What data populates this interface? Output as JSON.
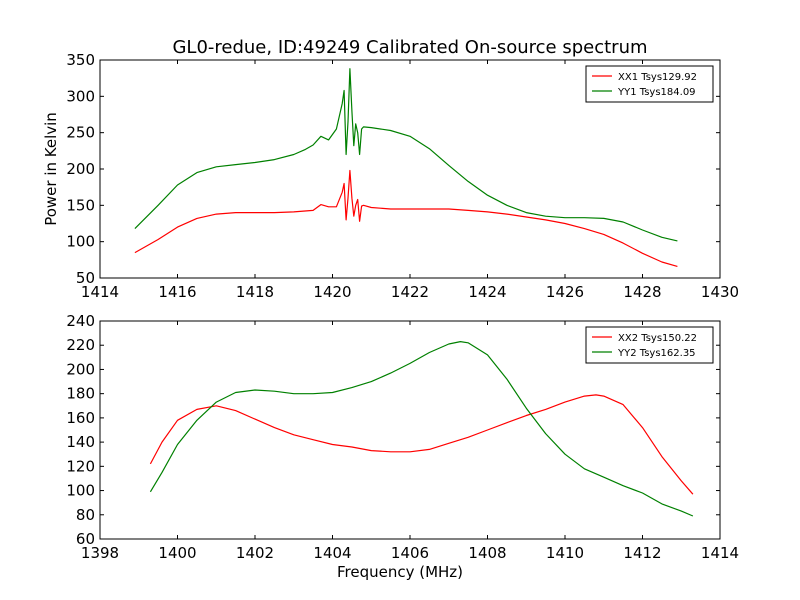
{
  "figure": {
    "title": "GL0-redue, ID:49249 Calibrated On-source spectrum"
  },
  "chart_data": [
    {
      "type": "line",
      "ylabel": "Power in Kelvin",
      "xlabel": "",
      "xlim": [
        1414,
        1430
      ],
      "ylim": [
        50,
        350
      ],
      "xticks": [
        1414,
        1416,
        1418,
        1420,
        1422,
        1424,
        1426,
        1428,
        1430
      ],
      "yticks": [
        50,
        100,
        150,
        200,
        250,
        300,
        350
      ],
      "grid": false,
      "legend_position": "top-right",
      "series": [
        {
          "name": "XX1 Tsys129.92",
          "color": "#ff0000",
          "x": [
            1414.9,
            1415.5,
            1416.0,
            1416.5,
            1417.0,
            1417.5,
            1418.0,
            1418.5,
            1419.0,
            1419.5,
            1419.7,
            1419.9,
            1420.1,
            1420.25,
            1420.3,
            1420.35,
            1420.4,
            1420.45,
            1420.5,
            1420.55,
            1420.6,
            1420.65,
            1420.7,
            1420.75,
            1420.8,
            1421.0,
            1421.5,
            1422.0,
            1422.5,
            1423.0,
            1423.5,
            1424.0,
            1424.5,
            1425.0,
            1425.5,
            1426.0,
            1426.5,
            1427.0,
            1427.5,
            1428.0,
            1428.5,
            1428.9
          ],
          "y": [
            85,
            103,
            120,
            132,
            138,
            140,
            140,
            140,
            141,
            143,
            151,
            148,
            148,
            168,
            180,
            130,
            160,
            198,
            160,
            135,
            150,
            158,
            128,
            149,
            150,
            147,
            145,
            145,
            145,
            145,
            143,
            141,
            138,
            134,
            130,
            125,
            118,
            110,
            98,
            84,
            72,
            66
          ]
        },
        {
          "name": "YY1 Tsys184.09",
          "color": "#008000",
          "x": [
            1414.9,
            1415.5,
            1416.0,
            1416.5,
            1417.0,
            1417.5,
            1418.0,
            1418.5,
            1419.0,
            1419.3,
            1419.5,
            1419.7,
            1419.9,
            1420.1,
            1420.25,
            1420.3,
            1420.35,
            1420.4,
            1420.45,
            1420.5,
            1420.55,
            1420.6,
            1420.65,
            1420.7,
            1420.75,
            1420.8,
            1421.0,
            1421.5,
            1422.0,
            1422.5,
            1423.0,
            1423.5,
            1424.0,
            1424.5,
            1425.0,
            1425.5,
            1426.0,
            1426.5,
            1427.0,
            1427.5,
            1428.0,
            1428.5,
            1428.9
          ],
          "y": [
            118,
            150,
            178,
            195,
            203,
            206,
            209,
            213,
            220,
            227,
            233,
            245,
            240,
            255,
            290,
            308,
            220,
            265,
            338,
            280,
            232,
            262,
            250,
            220,
            255,
            258,
            257,
            253,
            245,
            228,
            205,
            183,
            164,
            150,
            140,
            135,
            133,
            133,
            132,
            127,
            116,
            106,
            101
          ]
        }
      ]
    },
    {
      "type": "line",
      "ylabel": "",
      "xlabel": "Frequency (MHz)",
      "xlim": [
        1398,
        1414
      ],
      "ylim": [
        60,
        240
      ],
      "xticks": [
        1398,
        1400,
        1402,
        1404,
        1406,
        1408,
        1410,
        1412,
        1414
      ],
      "yticks": [
        60,
        80,
        100,
        120,
        140,
        160,
        180,
        200,
        220,
        240
      ],
      "grid": false,
      "legend_position": "top-right",
      "series": [
        {
          "name": "XX2 Tsys150.22",
          "color": "#ff0000",
          "x": [
            1399.3,
            1399.6,
            1400.0,
            1400.5,
            1401.0,
            1401.5,
            1402.0,
            1402.5,
            1403.0,
            1403.5,
            1404.0,
            1404.5,
            1405.0,
            1405.5,
            1406.0,
            1406.5,
            1407.0,
            1407.5,
            1408.0,
            1408.5,
            1409.0,
            1409.5,
            1410.0,
            1410.5,
            1410.8,
            1411.0,
            1411.5,
            1412.0,
            1412.5,
            1413.0,
            1413.3
          ],
          "y": [
            122,
            140,
            158,
            167,
            170,
            166,
            159,
            152,
            146,
            142,
            138,
            136,
            133,
            132,
            132,
            134,
            139,
            144,
            150,
            156,
            162,
            167,
            173,
            178,
            179,
            178,
            171,
            152,
            128,
            108,
            97
          ]
        },
        {
          "name": "YY2 Tsys162.35",
          "color": "#008000",
          "x": [
            1399.3,
            1399.6,
            1400.0,
            1400.5,
            1401.0,
            1401.5,
            1402.0,
            1402.5,
            1403.0,
            1403.5,
            1404.0,
            1404.5,
            1405.0,
            1405.5,
            1406.0,
            1406.5,
            1407.0,
            1407.3,
            1407.5,
            1408.0,
            1408.5,
            1409.0,
            1409.5,
            1410.0,
            1410.5,
            1411.0,
            1411.5,
            1412.0,
            1412.5,
            1413.0,
            1413.3
          ],
          "y": [
            99,
            115,
            138,
            158,
            173,
            181,
            183,
            182,
            180,
            180,
            181,
            185,
            190,
            197,
            205,
            214,
            221,
            223,
            222,
            212,
            192,
            168,
            147,
            130,
            118,
            111,
            104,
            98,
            89,
            83,
            79
          ]
        }
      ]
    }
  ]
}
